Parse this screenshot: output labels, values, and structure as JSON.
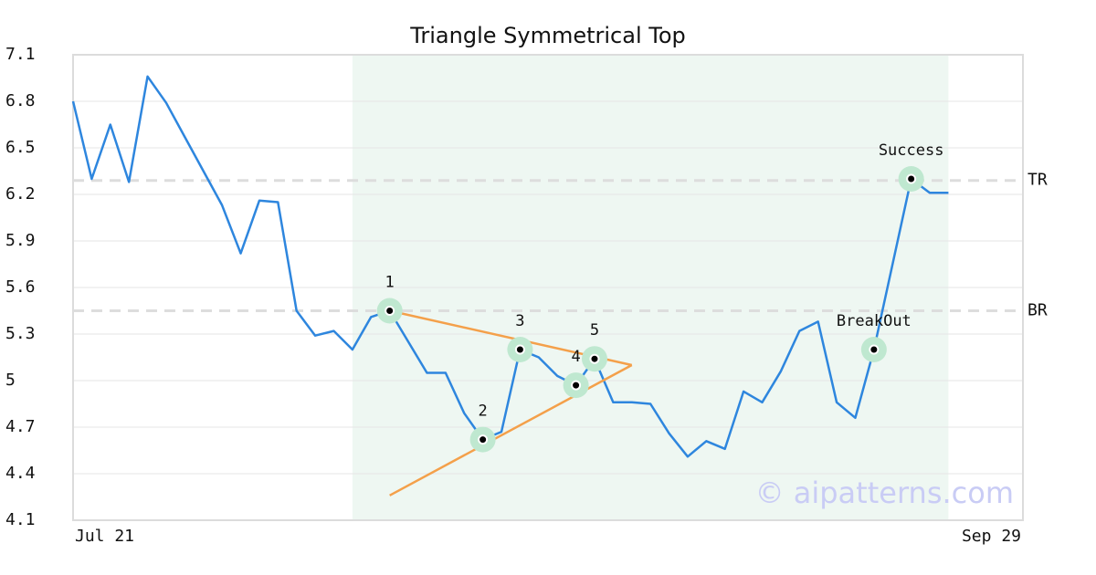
{
  "chart_data": {
    "type": "line",
    "title": "Triangle Symmetrical Top",
    "categories": [
      "Jul 21",
      null,
      null,
      null,
      null,
      null,
      null,
      null,
      null,
      null,
      null,
      null,
      null,
      null,
      null,
      null,
      null,
      null,
      null,
      null,
      null,
      null,
      null,
      null,
      null,
      null,
      null,
      null,
      null,
      null,
      null,
      null,
      null,
      null,
      null,
      null,
      null,
      null,
      null,
      null,
      null,
      null,
      null,
      null,
      null,
      null,
      null,
      null,
      null,
      null,
      null,
      "Sep 29"
    ],
    "values": [
      6.8,
      6.3,
      6.65,
      6.28,
      6.96,
      6.79,
      6.57,
      6.35,
      6.13,
      5.82,
      6.16,
      6.15,
      5.45,
      5.29,
      5.32,
      5.2,
      5.41,
      5.45,
      5.25,
      5.05,
      5.05,
      4.79,
      4.62,
      4.67,
      5.2,
      5.15,
      5.03,
      4.97,
      5.14,
      4.86,
      4.86,
      4.85,
      4.66,
      4.51,
      4.61,
      4.56,
      4.93,
      4.86,
      5.06,
      5.32,
      5.38,
      4.86,
      4.76,
      5.2,
      5.75,
      6.3,
      6.21,
      6.21,
      null,
      null,
      null,
      null
    ],
    "color": "#2e86de",
    "ylim": [
      4.1,
      7.1
    ],
    "yticks": [
      4.1,
      4.4,
      4.7,
      5.0,
      5.3,
      5.6,
      5.9,
      6.2,
      6.5,
      6.8,
      7.1
    ],
    "grid": true,
    "highlight_range": [
      15,
      47
    ],
    "highlight_color": "#eef7f2",
    "hlines": [
      {
        "label": "TR",
        "value": 6.29
      },
      {
        "label": "BR",
        "value": 5.45
      }
    ],
    "points": [
      {
        "label": "1",
        "index": 17,
        "value": 5.45
      },
      {
        "label": "2",
        "index": 22,
        "value": 4.62
      },
      {
        "label": "3",
        "index": 24,
        "value": 5.2
      },
      {
        "label": "4",
        "index": 27,
        "value": 4.97
      },
      {
        "label": "5",
        "index": 28,
        "value": 5.14
      },
      {
        "label": "BreakOut",
        "index": 43,
        "value": 5.2
      },
      {
        "label": "Success",
        "index": 45,
        "value": 6.3
      }
    ],
    "triangle": {
      "color": "#f4a04a",
      "upper": [
        [
          17,
          5.45
        ],
        [
          30,
          5.1
        ]
      ],
      "lower": [
        [
          17,
          4.26
        ],
        [
          30,
          5.1
        ]
      ]
    },
    "watermark": "© aipatterns.com"
  }
}
